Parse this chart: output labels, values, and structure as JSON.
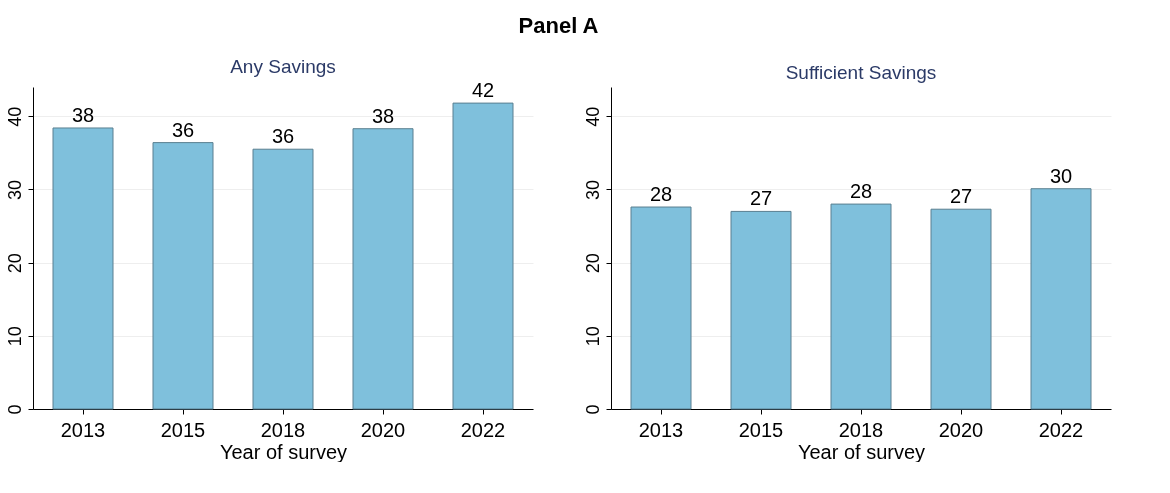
{
  "chart_data": [
    {
      "type": "bar",
      "title": "Any Savings",
      "annotations": [
        "Panel A"
      ],
      "xlabel": "Year of survey",
      "categories": [
        "2013",
        "2015",
        "2018",
        "2020",
        "2022"
      ],
      "values": [
        38.4,
        36.4,
        35.5,
        38.3,
        41.8
      ],
      "value_labels": [
        "38",
        "36",
        "36",
        "38",
        "42"
      ],
      "color": "#7fc0dc",
      "ylim": [
        0,
        44
      ],
      "yticks": [
        0,
        10,
        20,
        30,
        40
      ],
      "grid": "y"
    },
    {
      "type": "bar",
      "title": "Sufficient Savings",
      "xlabel": "Year of survey",
      "categories": [
        "2013",
        "2015",
        "2018",
        "2020",
        "2022"
      ],
      "values": [
        27.6,
        27.0,
        28.0,
        27.3,
        30.1
      ],
      "value_labels": [
        "28",
        "27",
        "28",
        "27",
        "30"
      ],
      "color": "#7fc0dc",
      "ylim": [
        0,
        44
      ],
      "yticks": [
        0,
        10,
        20,
        30,
        40
      ],
      "grid": "y"
    }
  ]
}
